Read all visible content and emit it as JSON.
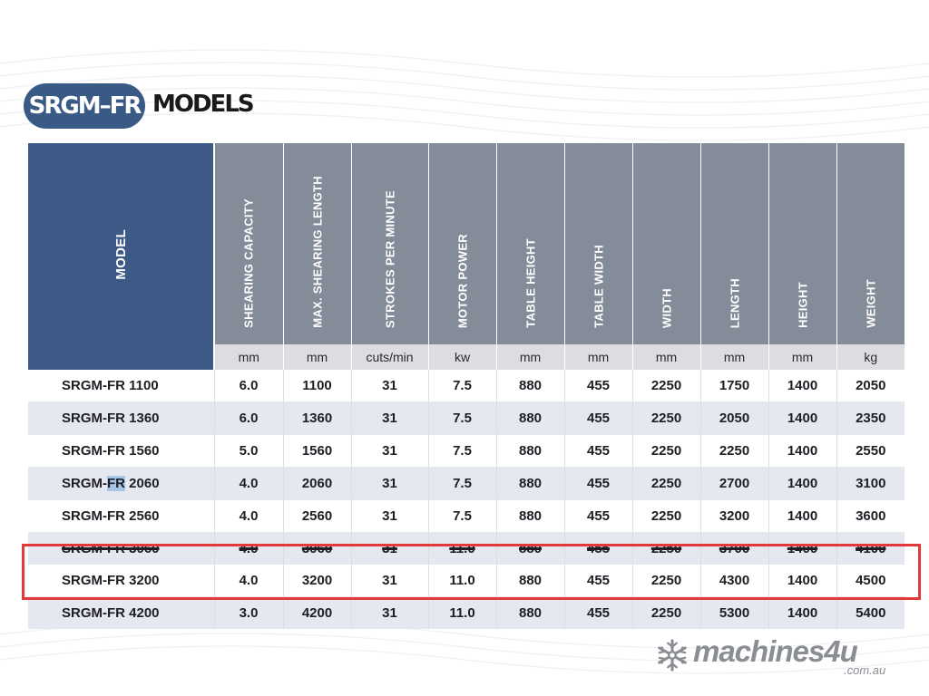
{
  "title": {
    "badge": "SRGM–FR",
    "label": "MODELS"
  },
  "table": {
    "model_header": "MODEL",
    "columns": [
      {
        "label": "SHEARING CAPACITY",
        "unit": "mm"
      },
      {
        "label": "MAX. SHEARING LENGTH",
        "unit": "mm"
      },
      {
        "label": "STROKES PER MINUTE",
        "unit": "cuts/min"
      },
      {
        "label": "MOTOR POWER",
        "unit": "kw"
      },
      {
        "label": "TABLE HEIGHT",
        "unit": "mm"
      },
      {
        "label": "TABLE WIDTH",
        "unit": "mm"
      },
      {
        "label": "WIDTH",
        "unit": "mm"
      },
      {
        "label": "LENGTH",
        "unit": "mm"
      },
      {
        "label": "HEIGHT",
        "unit": "mm"
      },
      {
        "label": "WEIGHT",
        "unit": "kg"
      }
    ],
    "rows": [
      {
        "model": "SRGM-FR 1100",
        "values": [
          "6.0",
          "1100",
          "31",
          "7.5",
          "880",
          "455",
          "2250",
          "1750",
          "1400",
          "2050"
        ]
      },
      {
        "model": "SRGM-FR 1360",
        "values": [
          "6.0",
          "1360",
          "31",
          "7.5",
          "880",
          "455",
          "2250",
          "2050",
          "1400",
          "2350"
        ]
      },
      {
        "model": "SRGM-FR 1560",
        "values": [
          "5.0",
          "1560",
          "31",
          "7.5",
          "880",
          "455",
          "2250",
          "2250",
          "1400",
          "2550"
        ]
      },
      {
        "model_prefix": "SRGM-",
        "model_highlight": "FR",
        "model_suffix": " 2060",
        "model": "SRGM-FR 2060",
        "values": [
          "4.0",
          "2060",
          "31",
          "7.5",
          "880",
          "455",
          "2250",
          "2700",
          "1400",
          "3100"
        ]
      },
      {
        "model": "SRGM-FR 2560",
        "values": [
          "4.0",
          "2560",
          "31",
          "7.5",
          "880",
          "455",
          "2250",
          "3200",
          "1400",
          "3600"
        ]
      },
      {
        "model": "SRGM-FR 3060",
        "struck": true,
        "values": [
          "4.0",
          "3060",
          "31",
          "11.0",
          "880",
          "455",
          "2250",
          "3700",
          "1400",
          "4100"
        ]
      },
      {
        "model": "SRGM-FR 3200",
        "highlighted": true,
        "values": [
          "4.0",
          "3200",
          "31",
          "11.0",
          "880",
          "455",
          "2250",
          "4300",
          "1400",
          "4500"
        ]
      },
      {
        "model": "SRGM-FR 4200",
        "values": [
          "3.0",
          "4200",
          "31",
          "11.0",
          "880",
          "455",
          "2250",
          "5300",
          "1400",
          "5400"
        ]
      }
    ]
  },
  "logo": {
    "name": "machines4u",
    "domain": ".com.au",
    "icon": "snowflake-gear-icon"
  },
  "colors": {
    "header_blue": "#3d5a87",
    "header_gray": "#858c99",
    "highlight_red": "#e23a3a",
    "row_alt": "#e5e8f1"
  }
}
